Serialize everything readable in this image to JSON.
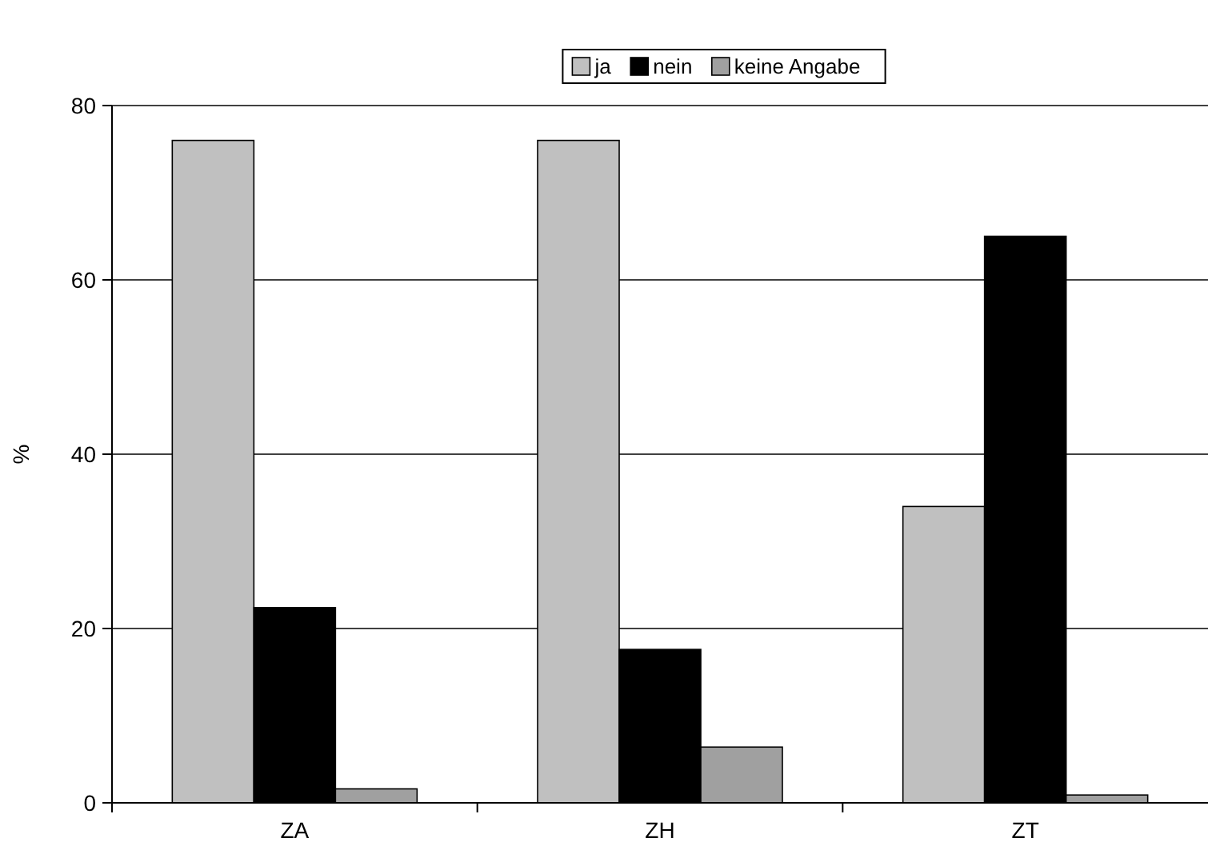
{
  "chart_data": {
    "type": "bar",
    "ylabel": "%",
    "categories": [
      "ZA",
      "ZH",
      "ZT"
    ],
    "series": [
      {
        "name": "ja",
        "color": "#c0c0c0",
        "values": [
          76,
          76,
          34
        ]
      },
      {
        "name": "nein",
        "color": "#000000",
        "values": [
          22.4,
          17.6,
          65
        ]
      },
      {
        "name": "keine Angabe",
        "color": "#a0a0a0",
        "values": [
          1.6,
          6.4,
          0.9
        ]
      }
    ],
    "ylim": [
      0,
      80
    ],
    "yticks": [
      0,
      20,
      40,
      60,
      80
    ],
    "grid": "y",
    "legend": "top"
  }
}
